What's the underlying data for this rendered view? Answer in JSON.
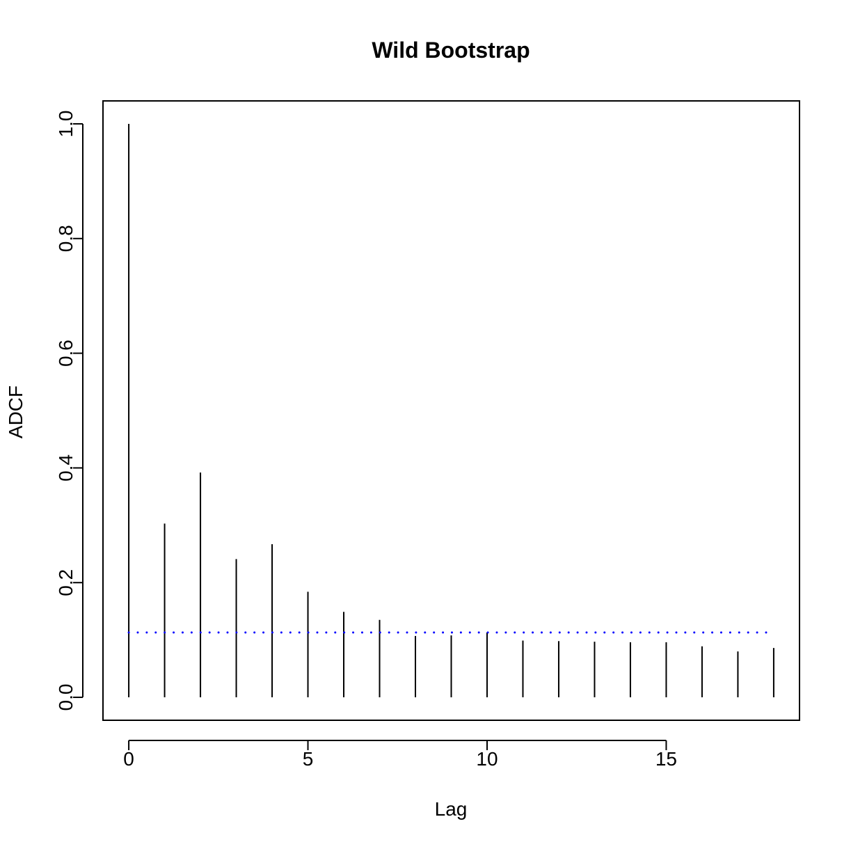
{
  "chart_data": {
    "type": "bar",
    "title": "Wild Bootstrap",
    "xlabel": "Lag",
    "ylabel": "ADCF",
    "x": [
      0,
      1,
      2,
      3,
      4,
      5,
      6,
      7,
      8,
      9,
      10,
      11,
      12,
      13,
      14,
      15,
      16,
      17,
      18
    ],
    "values": [
      1.0,
      0.303,
      0.392,
      0.241,
      0.267,
      0.184,
      0.149,
      0.135,
      0.107,
      0.108,
      0.113,
      0.099,
      0.098,
      0.097,
      0.096,
      0.096,
      0.089,
      0.08,
      0.086
    ],
    "xlim": [
      -0.72,
      18.72
    ],
    "ylim": [
      -0.04,
      1.04
    ],
    "xticks": [
      0,
      5,
      10,
      15
    ],
    "yticks": [
      0.0,
      0.2,
      0.4,
      0.6,
      0.8,
      1.0
    ],
    "threshold": 0.113,
    "threshold_range": [
      0,
      18
    ],
    "threshold_color": "#0000ff",
    "bar_color": "#000000",
    "grid": false
  }
}
